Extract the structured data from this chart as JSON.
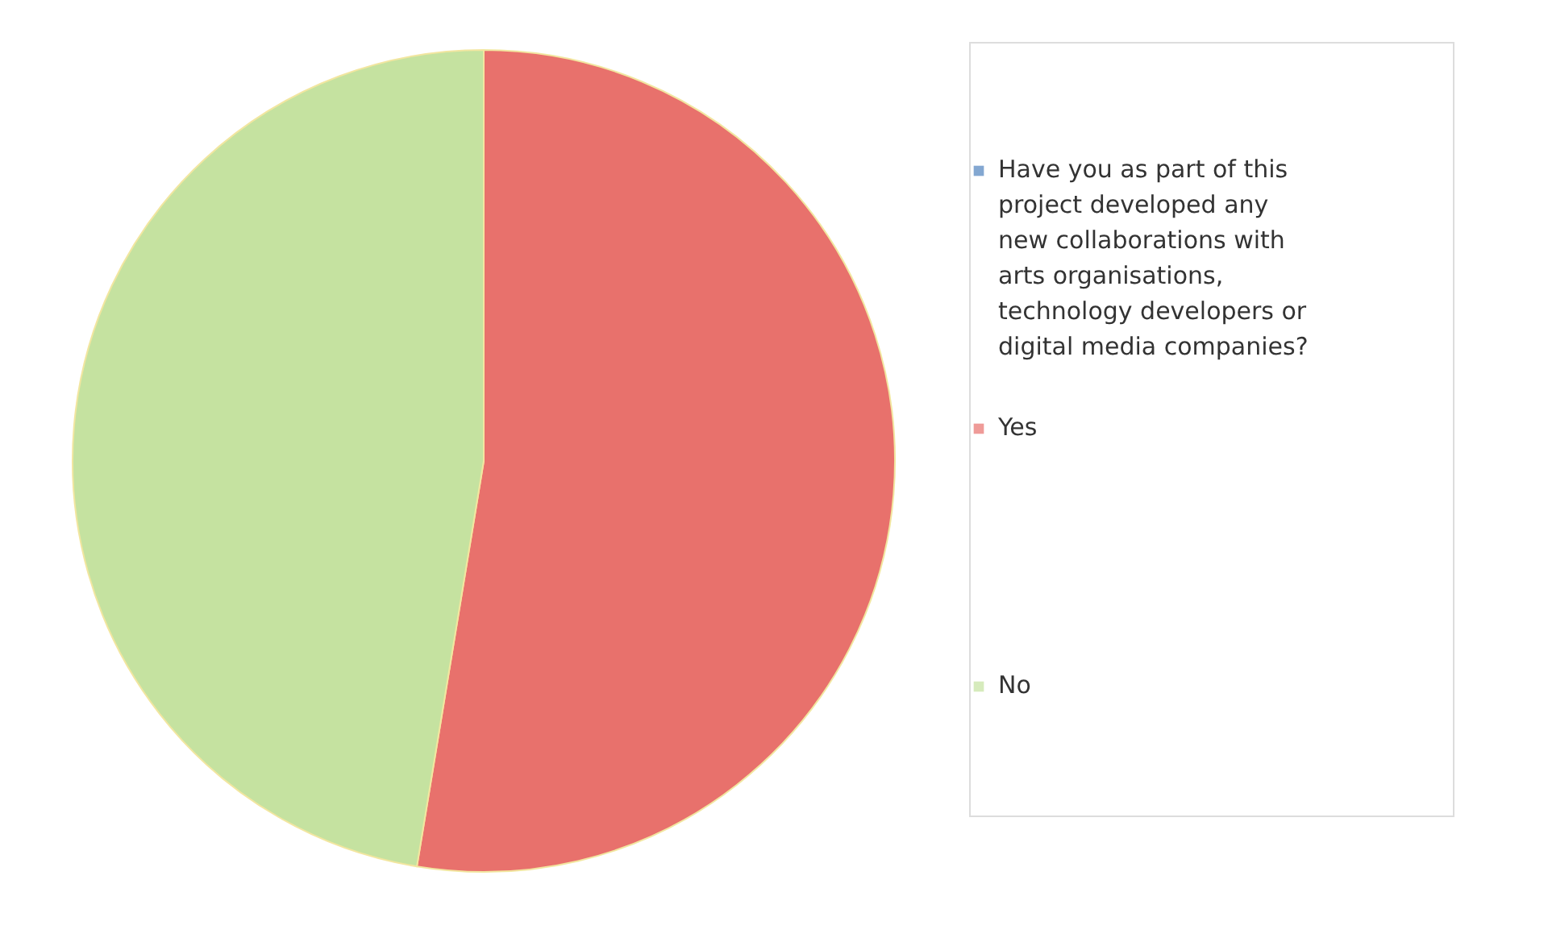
{
  "chart_data": {
    "type": "pie",
    "categories": [
      "Have you as part of this project developed any new collaborations with arts organisations, technology developers or digital media companies?",
      "Yes",
      "No"
    ],
    "values": [
      0,
      52.6,
      47.4
    ],
    "colors": [
      "#4f81bd",
      "#e8716c",
      "#c5e2a0"
    ],
    "legend": "right"
  }
}
